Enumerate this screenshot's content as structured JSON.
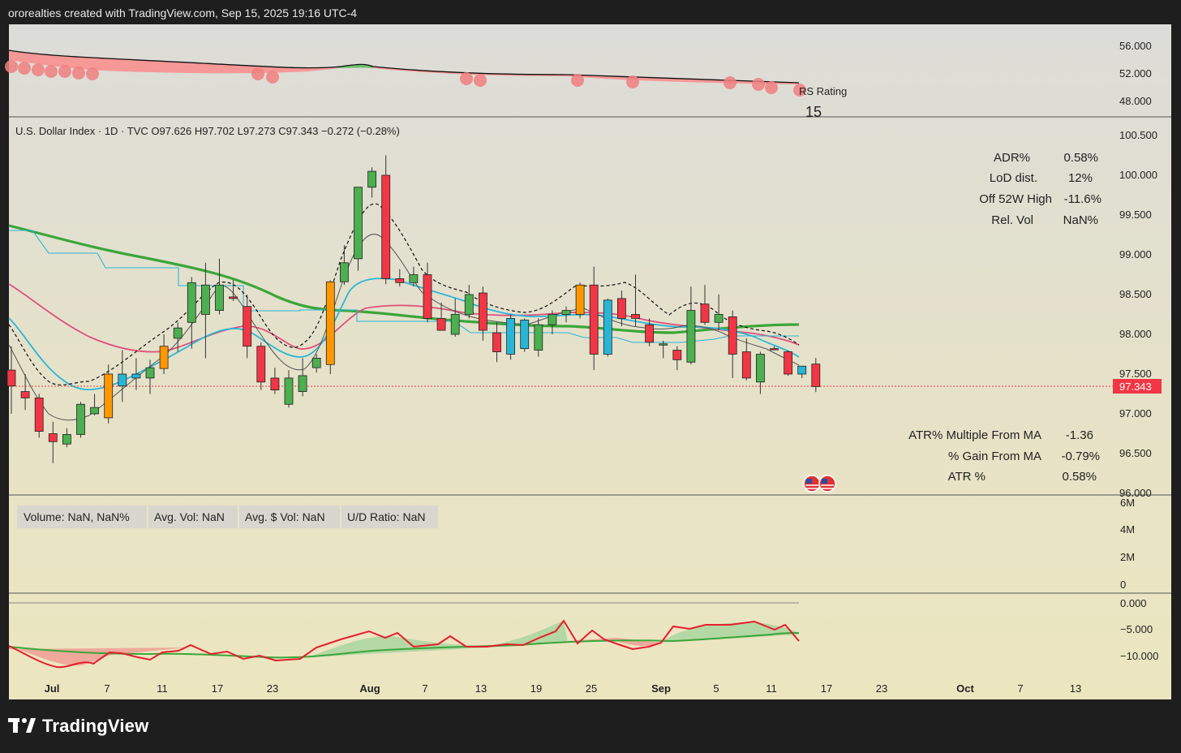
{
  "header": {
    "credit": "ororealties created with TradingView.com, Sep 15, 2025 19:16 UTC-4"
  },
  "logo": {
    "text": "TradingView"
  },
  "colors": {
    "up": "#4caf50",
    "down": "#f23645",
    "cyan": "#29b6d6",
    "orange": "#ff9800",
    "bg": "#ebe6c4",
    "ma50": "#3aa63a",
    "ma20": "#e04f7a",
    "ema": "#29b6d6"
  },
  "rs_panel": {
    "label": "RS Rating",
    "value": "15",
    "ticks": [
      "56.000",
      "52.000",
      "48.000"
    ]
  },
  "price_panel": {
    "legend": "U.S. Dollar Index · 1D · TVC  O97.626  H97.702  L97.273  C97.343  −0.272 (−0.28%)",
    "last_price": "97.343",
    "ticks": [
      "100.500",
      "100.000",
      "99.500",
      "99.000",
      "98.500",
      "98.000",
      "97.500",
      "97.000",
      "96.500",
      "96.000"
    ],
    "stats_top": [
      {
        "label": "ADR%",
        "value": "0.58%"
      },
      {
        "label": "LoD dist.",
        "value": "12%"
      },
      {
        "label": "Off 52W High",
        "value": "-11.6%"
      },
      {
        "label": "Rel. Vol",
        "value": "NaN%"
      }
    ],
    "stats_bottom": [
      {
        "label": "ATR% Multiple From MA",
        "value": "-1.36"
      },
      {
        "label": "% Gain From MA",
        "value": "-0.79%"
      },
      {
        "label": "ATR %",
        "value": "0.58%"
      }
    ]
  },
  "volume_panel": {
    "tags": [
      "Volume: NaN, NaN%",
      "Avg. Vol: NaN",
      "Avg. $ Vol: NaN",
      "U/D Ratio: NaN"
    ],
    "ticks": [
      "6M",
      "4M",
      "2M",
      "0"
    ]
  },
  "osc_panel": {
    "ticks": [
      "0.000",
      "−5.000",
      "−10.000"
    ]
  },
  "x_axis": {
    "labels": [
      "Jul",
      "7",
      "11",
      "17",
      "23",
      "Aug",
      "7",
      "13",
      "19",
      "25",
      "Sep",
      "5",
      "11",
      "17",
      "23",
      "Oct",
      "7",
      "13"
    ],
    "bold": [
      "Jul",
      "Aug",
      "Sep",
      "Oct"
    ]
  },
  "chart_data": {
    "type": "candlestick",
    "title": "U.S. Dollar Index · 1D · TVC",
    "y_range": [
      96.0,
      100.7
    ],
    "candles": [
      {
        "o": 97.55,
        "h": 97.85,
        "l": 97.0,
        "c": 97.35
      },
      {
        "o": 97.28,
        "h": 97.5,
        "l": 97.05,
        "c": 97.2
      },
      {
        "o": 97.2,
        "h": 97.25,
        "l": 96.7,
        "c": 96.78
      },
      {
        "o": 96.75,
        "h": 96.9,
        "l": 96.38,
        "c": 96.65
      },
      {
        "o": 96.62,
        "h": 96.82,
        "l": 96.58,
        "c": 96.74
      },
      {
        "o": 96.74,
        "h": 97.15,
        "l": 96.7,
        "c": 97.12
      },
      {
        "o": 97.0,
        "h": 97.25,
        "l": 96.98,
        "c": 97.08
      },
      {
        "o": 96.95,
        "h": 97.62,
        "l": 96.88,
        "c": 97.5
      },
      {
        "o": 97.35,
        "h": 97.8,
        "l": 97.15,
        "c": 97.5
      },
      {
        "o": 97.45,
        "h": 97.7,
        "l": 97.3,
        "c": 97.5
      },
      {
        "o": 97.45,
        "h": 97.68,
        "l": 97.25,
        "c": 97.58
      },
      {
        "o": 97.57,
        "h": 98.0,
        "l": 97.5,
        "c": 97.85
      },
      {
        "o": 97.95,
        "h": 98.15,
        "l": 97.78,
        "c": 98.08
      },
      {
        "o": 98.15,
        "h": 98.72,
        "l": 97.82,
        "c": 98.65
      },
      {
        "o": 98.25,
        "h": 98.9,
        "l": 97.7,
        "c": 98.62
      },
      {
        "o": 98.3,
        "h": 98.95,
        "l": 98.25,
        "c": 98.62
      },
      {
        "o": 98.47,
        "h": 98.68,
        "l": 98.42,
        "c": 98.45
      },
      {
        "o": 98.35,
        "h": 98.5,
        "l": 97.7,
        "c": 97.85
      },
      {
        "o": 97.85,
        "h": 97.9,
        "l": 97.3,
        "c": 97.4
      },
      {
        "o": 97.45,
        "h": 97.58,
        "l": 97.25,
        "c": 97.3
      },
      {
        "o": 97.12,
        "h": 97.55,
        "l": 97.08,
        "c": 97.45
      },
      {
        "o": 97.28,
        "h": 97.7,
        "l": 97.22,
        "c": 97.48
      },
      {
        "o": 97.58,
        "h": 97.75,
        "l": 97.52,
        "c": 97.7
      },
      {
        "o": 97.62,
        "h": 98.68,
        "l": 97.5,
        "c": 98.66
      },
      {
        "o": 98.66,
        "h": 99.12,
        "l": 98.62,
        "c": 98.9
      },
      {
        "o": 98.95,
        "h": 99.85,
        "l": 98.8,
        "c": 99.85
      },
      {
        "o": 99.85,
        "h": 100.1,
        "l": 99.72,
        "c": 100.05
      },
      {
        "o": 100.0,
        "h": 100.25,
        "l": 98.63,
        "c": 98.7
      },
      {
        "o": 98.7,
        "h": 98.82,
        "l": 98.6,
        "c": 98.65
      },
      {
        "o": 98.65,
        "h": 98.85,
        "l": 98.6,
        "c": 98.75
      },
      {
        "o": 98.75,
        "h": 98.9,
        "l": 98.15,
        "c": 98.2
      },
      {
        "o": 98.2,
        "h": 98.4,
        "l": 98.05,
        "c": 98.05
      },
      {
        "o": 98.0,
        "h": 98.45,
        "l": 97.97,
        "c": 98.25
      },
      {
        "o": 98.25,
        "h": 98.62,
        "l": 98.2,
        "c": 98.5
      },
      {
        "o": 98.52,
        "h": 98.6,
        "l": 97.92,
        "c": 98.05
      },
      {
        "o": 98.02,
        "h": 98.15,
        "l": 97.65,
        "c": 97.78
      },
      {
        "o": 97.75,
        "h": 98.25,
        "l": 97.68,
        "c": 98.2
      },
      {
        "o": 97.82,
        "h": 98.2,
        "l": 97.78,
        "c": 98.18
      },
      {
        "o": 97.8,
        "h": 98.2,
        "l": 97.72,
        "c": 98.12
      },
      {
        "o": 98.12,
        "h": 98.3,
        "l": 98.0,
        "c": 98.25
      },
      {
        "o": 98.25,
        "h": 98.35,
        "l": 98.15,
        "c": 98.3
      },
      {
        "o": 98.25,
        "h": 98.65,
        "l": 98.2,
        "c": 98.62
      },
      {
        "o": 98.62,
        "h": 98.85,
        "l": 97.55,
        "c": 97.75
      },
      {
        "o": 97.75,
        "h": 98.45,
        "l": 97.72,
        "c": 98.43
      },
      {
        "o": 98.45,
        "h": 98.55,
        "l": 98.1,
        "c": 98.2
      },
      {
        "o": 98.25,
        "h": 98.75,
        "l": 98.1,
        "c": 98.2
      },
      {
        "o": 98.12,
        "h": 98.2,
        "l": 97.85,
        "c": 97.9
      },
      {
        "o": 97.88,
        "h": 97.92,
        "l": 97.7,
        "c": 97.88
      },
      {
        "o": 97.8,
        "h": 97.85,
        "l": 97.55,
        "c": 97.68
      },
      {
        "o": 97.65,
        "h": 98.6,
        "l": 97.62,
        "c": 98.3
      },
      {
        "o": 98.38,
        "h": 98.62,
        "l": 98.12,
        "c": 98.15
      },
      {
        "o": 98.15,
        "h": 98.5,
        "l": 98.05,
        "c": 98.25
      },
      {
        "o": 98.22,
        "h": 98.3,
        "l": 97.45,
        "c": 97.75
      },
      {
        "o": 97.78,
        "h": 97.95,
        "l": 97.42,
        "c": 97.45
      },
      {
        "o": 97.4,
        "h": 97.78,
        "l": 97.25,
        "c": 97.75
      },
      {
        "o": 97.82,
        "h": 97.85,
        "l": 97.8,
        "c": 97.81
      },
      {
        "o": 97.78,
        "h": 97.8,
        "l": 97.48,
        "c": 97.5
      },
      {
        "o": 97.5,
        "h": 97.6,
        "l": 97.45,
        "c": 97.6
      },
      {
        "o": 97.626,
        "h": 97.702,
        "l": 97.273,
        "c": 97.343
      }
    ]
  }
}
